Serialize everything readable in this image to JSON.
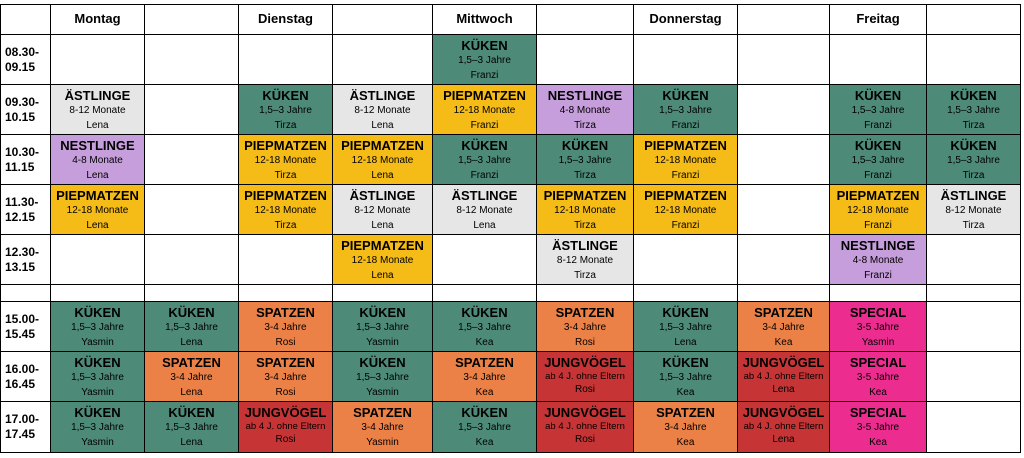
{
  "colors": {
    "grey": "#e6e6e6",
    "teal": "#4d8a77",
    "yellow": "#f5bb16",
    "lilac": "#c79edc",
    "orange": "#ec8147",
    "red": "#c73435",
    "pink": "#ec2c8f",
    "white": "#ffffff"
  },
  "days": [
    "Montag",
    "",
    "Dienstag",
    "",
    "Mittwoch",
    "",
    "Donnerstag",
    "",
    "Freitag",
    ""
  ],
  "times": [
    [
      "08.30-",
      "09.15"
    ],
    [
      "09.30-",
      "10.15"
    ],
    [
      "10.30-",
      "11.15"
    ],
    [
      "11.30-",
      "12.15"
    ],
    [
      "12.30-",
      "13.15"
    ],
    [
      "",
      ""
    ],
    [
      "15.00-",
      "15.45"
    ],
    [
      "16.00-",
      "16.45"
    ],
    [
      "17.00-",
      "17.45"
    ]
  ],
  "rows": [
    [
      null,
      null,
      null,
      null,
      {
        "group": "KÜKEN",
        "age": "1,5–3 Jahre",
        "teacher": "Franzi",
        "color": "teal"
      },
      null,
      null,
      null,
      null,
      null
    ],
    [
      {
        "group": "ÄSTLINGE",
        "age": "8-12 Monate",
        "teacher": "Lena",
        "color": "grey"
      },
      null,
      {
        "group": "KÜKEN",
        "age": "1,5–3 Jahre",
        "teacher": "Tirza",
        "color": "teal"
      },
      {
        "group": "ÄSTLINGE",
        "age": "8-12 Monate",
        "teacher": "Lena",
        "color": "grey"
      },
      {
        "group": "PIEPMATZEN",
        "age": "12-18 Monate",
        "teacher": "Franzi",
        "color": "yellow"
      },
      {
        "group": "NESTLINGE",
        "age": "4-8 Monate",
        "teacher": "Tirza",
        "color": "lilac"
      },
      {
        "group": "KÜKEN",
        "age": "1,5–3 Jahre",
        "teacher": "Franzi",
        "color": "teal"
      },
      null,
      {
        "group": "KÜKEN",
        "age": "1,5–3 Jahre",
        "teacher": "Franzi",
        "color": "teal"
      },
      {
        "group": "KÜKEN",
        "age": "1,5–3 Jahre",
        "teacher": "Tirza",
        "color": "teal"
      }
    ],
    [
      {
        "group": "NESTLINGE",
        "age": "4-8 Monate",
        "teacher": "Lena",
        "color": "lilac"
      },
      null,
      {
        "group": "PIEPMATZEN",
        "age": "12-18 Monate",
        "teacher": "Tirza",
        "color": "yellow"
      },
      {
        "group": "PIEPMATZEN",
        "age": "12-18 Monate",
        "teacher": "Lena",
        "color": "yellow"
      },
      {
        "group": "KÜKEN",
        "age": "1,5–3 Jahre",
        "teacher": "Franzi",
        "color": "teal"
      },
      {
        "group": "KÜKEN",
        "age": "1,5–3 Jahre",
        "teacher": "Tirza",
        "color": "teal"
      },
      {
        "group": "PIEPMATZEN",
        "age": "12-18 Monate",
        "teacher": "Franzi",
        "color": "yellow"
      },
      null,
      {
        "group": "KÜKEN",
        "age": "1,5–3 Jahre",
        "teacher": "Franzi",
        "color": "teal"
      },
      {
        "group": "KÜKEN",
        "age": "1,5–3 Jahre",
        "teacher": "Tirza",
        "color": "teal"
      }
    ],
    [
      {
        "group": "PIEPMATZEN",
        "age": "12-18 Monate",
        "teacher": "Lena",
        "color": "yellow"
      },
      null,
      {
        "group": "PIEPMATZEN",
        "age": "12-18 Monate",
        "teacher": "Tirza",
        "color": "yellow"
      },
      {
        "group": "ÄSTLINGE",
        "age": "8-12 Monate",
        "teacher": "Lena",
        "color": "grey"
      },
      {
        "group": "ÄSTLINGE",
        "age": "8-12 Monate",
        "teacher": "Lena",
        "color": "grey"
      },
      {
        "group": "PIEPMATZEN",
        "age": "12-18 Monate",
        "teacher": "Tirza",
        "color": "yellow"
      },
      {
        "group": "PIEPMATZEN",
        "age": "12-18 Monate",
        "teacher": "Franzi",
        "color": "yellow"
      },
      null,
      {
        "group": "PIEPMATZEN",
        "age": "12-18 Monate",
        "teacher": "Franzi",
        "color": "yellow"
      },
      {
        "group": "ÄSTLINGE",
        "age": "8-12 Monate",
        "teacher": "Tirza",
        "color": "grey"
      }
    ],
    [
      null,
      null,
      null,
      {
        "group": "PIEPMATZEN",
        "age": "12-18 Monate",
        "teacher": "Lena",
        "color": "yellow"
      },
      null,
      {
        "group": "ÄSTLINGE",
        "age": "8-12 Monate",
        "teacher": "Tirza",
        "color": "grey"
      },
      null,
      null,
      {
        "group": "NESTLINGE",
        "age": "4-8 Monate",
        "teacher": "Franzi",
        "color": "lilac"
      },
      null
    ],
    [
      null,
      null,
      null,
      null,
      null,
      null,
      null,
      null,
      null,
      null
    ],
    [
      {
        "group": "KÜKEN",
        "age": "1,5–3 Jahre",
        "teacher": "Yasmin",
        "color": "teal"
      },
      {
        "group": "KÜKEN",
        "age": "1,5–3 Jahre",
        "teacher": "Lena",
        "color": "teal"
      },
      {
        "group": "SPATZEN",
        "age": "3-4 Jahre",
        "teacher": "Rosi",
        "color": "orange"
      },
      {
        "group": "KÜKEN",
        "age": "1,5–3 Jahre",
        "teacher": "Yasmin",
        "color": "teal"
      },
      {
        "group": "KÜKEN",
        "age": "1,5–3 Jahre",
        "teacher": "Kea",
        "color": "teal"
      },
      {
        "group": "SPATZEN",
        "age": "3-4 Jahre",
        "teacher": "Rosi",
        "color": "orange"
      },
      {
        "group": "KÜKEN",
        "age": "1,5–3 Jahre",
        "teacher": "Lena",
        "color": "teal"
      },
      {
        "group": "SPATZEN",
        "age": "3-4 Jahre",
        "teacher": "Kea",
        "color": "orange"
      },
      {
        "group": "SPECIAL",
        "age": "3-5 Jahre",
        "teacher": "Yasmin",
        "color": "pink"
      },
      null
    ],
    [
      {
        "group": "KÜKEN",
        "age": "1,5–3 Jahre",
        "teacher": "Yasmin",
        "color": "teal"
      },
      {
        "group": "SPATZEN",
        "age": "3-4 Jahre",
        "teacher": "Lena",
        "color": "orange"
      },
      {
        "group": "SPATZEN",
        "age": "3-4 Jahre",
        "teacher": "Rosi",
        "color": "orange"
      },
      {
        "group": "KÜKEN",
        "age": "1,5–3 Jahre",
        "teacher": "Yasmin",
        "color": "teal"
      },
      {
        "group": "SPATZEN",
        "age": "3-4 Jahre",
        "teacher": "Kea",
        "color": "orange"
      },
      {
        "group": "JUNGVÖGEL",
        "age": "ab 4 J. ohne Eltern",
        "teacher": "Rosi",
        "color": "red",
        "tight": true
      },
      {
        "group": "KÜKEN",
        "age": "1,5–3 Jahre",
        "teacher": "Kea",
        "color": "teal"
      },
      {
        "group": "JUNGVÖGEL",
        "age": "ab 4 J. ohne Eltern",
        "teacher": "Lena",
        "color": "red",
        "tight": true
      },
      {
        "group": "SPECIAL",
        "age": "3-5 Jahre",
        "teacher": "Kea",
        "color": "pink"
      },
      null
    ],
    [
      {
        "group": "KÜKEN",
        "age": "1,5–3 Jahre",
        "teacher": "Yasmin",
        "color": "teal"
      },
      {
        "group": "KÜKEN",
        "age": "1,5–3 Jahre",
        "teacher": "Lena",
        "color": "teal"
      },
      {
        "group": "JUNGVÖGEL",
        "age": "ab 4 J. ohne Eltern",
        "teacher": "Rosi",
        "color": "red",
        "tight": true
      },
      {
        "group": "SPATZEN",
        "age": "3-4 Jahre",
        "teacher": "Yasmin",
        "color": "orange"
      },
      {
        "group": "KÜKEN",
        "age": "1,5–3 Jahre",
        "teacher": "Kea",
        "color": "teal"
      },
      {
        "group": "JUNGVÖGEL",
        "age": "ab 4 J. ohne Eltern",
        "teacher": "Rosi",
        "color": "red",
        "tight": true
      },
      {
        "group": "SPATZEN",
        "age": "3-4 Jahre",
        "teacher": "Kea",
        "color": "orange"
      },
      {
        "group": "JUNGVÖGEL",
        "age": "ab 4 J. ohne Eltern",
        "teacher": "Lena",
        "color": "red",
        "tight": true
      },
      {
        "group": "SPECIAL",
        "age": "3-5 Jahre",
        "teacher": "Kea",
        "color": "pink"
      },
      null
    ]
  ]
}
